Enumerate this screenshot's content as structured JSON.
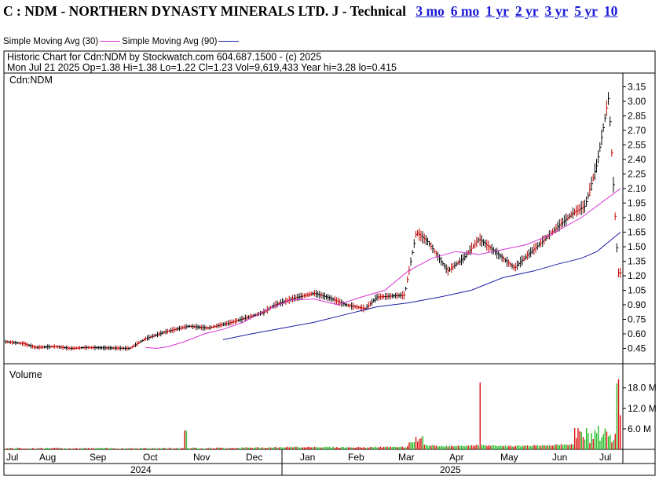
{
  "header": {
    "title": "C : NDM - NORTHERN DYNASTY MINERALS LTD. J - Technical",
    "links": [
      "3 mo",
      "6 mo",
      "1 yr",
      "2 yr",
      "3 yr",
      "5 yr",
      "10"
    ]
  },
  "legend": {
    "sma30_label": "Simple Moving Avg (30)",
    "sma90_label": "Simple Moving Avg (90)",
    "sma30_color": "#d633d6",
    "sma90_color": "#1c1ca8"
  },
  "chart_info": {
    "line1": "Historic Chart for Cdn:NDM by Stockwatch.com 604.687.1500 - (c) 2025",
    "line2": "Mon Jul 21 2025   Op=1.38   Hi=1.38   Lo=1.22   Cl=1.23   Vol=9,619,433   Year hi=3.28   lo=0.415",
    "symbol_label": "Cdn:NDM",
    "volume_label": "Volume"
  },
  "colors": {
    "up": "#000000",
    "down": "#c00000",
    "vol_up": "#22bb22",
    "vol_down": "#dd1111"
  },
  "chart_data": {
    "type": "line",
    "title": "Historic Chart for Cdn:NDM",
    "price_axis": {
      "ticks": [
        "3.15",
        "3.00",
        "2.85",
        "2.70",
        "2.55",
        "2.40",
        "2.25",
        "2.10",
        "1.95",
        "1.80",
        "1.65",
        "1.50",
        "1.35",
        "1.20",
        "1.05",
        "0.90",
        "0.75",
        "0.60",
        "0.45"
      ],
      "range": [
        0.33,
        3.28
      ]
    },
    "volume_axis": {
      "ticks": [
        "18.0 M",
        "12.0 M",
        "6.0 M"
      ],
      "range": [
        0,
        22
      ]
    },
    "x_labels": [
      "Jul",
      "Aug",
      "Sep",
      "Oct",
      "Nov",
      "Dec",
      "Jan",
      "Feb",
      "Mar",
      "Apr",
      "May",
      "Jun",
      "Jul"
    ],
    "years": [
      "2024",
      "2025"
    ],
    "close_anchors": [
      {
        "x": "Jul 2024",
        "y": 0.52
      },
      {
        "x": "mid Jul",
        "y": 0.5
      },
      {
        "x": "Aug",
        "y": 0.46
      },
      {
        "x": "mid Aug",
        "y": 0.47
      },
      {
        "x": "Sep",
        "y": 0.45
      },
      {
        "x": "mid Sep",
        "y": 0.46
      },
      {
        "x": "Oct",
        "y": 0.45
      },
      {
        "x": "early Oct",
        "y": 0.55
      },
      {
        "x": "mid Oct",
        "y": 0.62
      },
      {
        "x": "Nov",
        "y": 0.68
      },
      {
        "x": "mid Nov",
        "y": 0.66
      },
      {
        "x": "Dec",
        "y": 0.72
      },
      {
        "x": "mid Dec",
        "y": 0.82
      },
      {
        "x": "late Dec",
        "y": 0.9
      },
      {
        "x": "Jan",
        "y": 0.97
      },
      {
        "x": "mid Jan",
        "y": 1.02
      },
      {
        "x": "late Jan",
        "y": 0.97
      },
      {
        "x": "Feb",
        "y": 0.9
      },
      {
        "x": "mid Feb",
        "y": 0.86
      },
      {
        "x": "late Feb",
        "y": 0.98
      },
      {
        "x": "Mar",
        "y": 1.0
      },
      {
        "x": "early Mar",
        "y": 1.65
      },
      {
        "x": "mid Mar",
        "y": 1.55
      },
      {
        "x": "late Mar",
        "y": 1.25
      },
      {
        "x": "Apr",
        "y": 1.38
      },
      {
        "x": "mid Apr",
        "y": 1.58
      },
      {
        "x": "late Apr",
        "y": 1.45
      },
      {
        "x": "May",
        "y": 1.28
      },
      {
        "x": "mid May",
        "y": 1.4
      },
      {
        "x": "late May",
        "y": 1.55
      },
      {
        "x": "Jun",
        "y": 1.72
      },
      {
        "x": "mid Jun",
        "y": 1.85
      },
      {
        "x": "late Jun",
        "y": 1.92
      },
      {
        "x": "early Jul",
        "y": 2.35
      },
      {
        "x": "mid Jul",
        "y": 3.05
      },
      {
        "x": "Jul 21 2025",
        "y": 1.23
      }
    ],
    "series": [
      {
        "name": "Simple Moving Avg (30)",
        "y": [
          0.46,
          0.45,
          0.47,
          0.52,
          0.6,
          0.65,
          0.72,
          0.85,
          0.95,
          0.96,
          0.9,
          0.98,
          1.05,
          1.25,
          1.38,
          1.45,
          1.42,
          1.47,
          1.52,
          1.62,
          1.8,
          2.1
        ]
      },
      {
        "name": "Simple Moving Avg (90)",
        "y": [
          0.54,
          0.6,
          0.66,
          0.72,
          0.8,
          0.88,
          0.92,
          0.98,
          1.05,
          1.18,
          1.25,
          1.32,
          1.38,
          1.45,
          1.55,
          1.65
        ]
      }
    ],
    "grid": false
  }
}
